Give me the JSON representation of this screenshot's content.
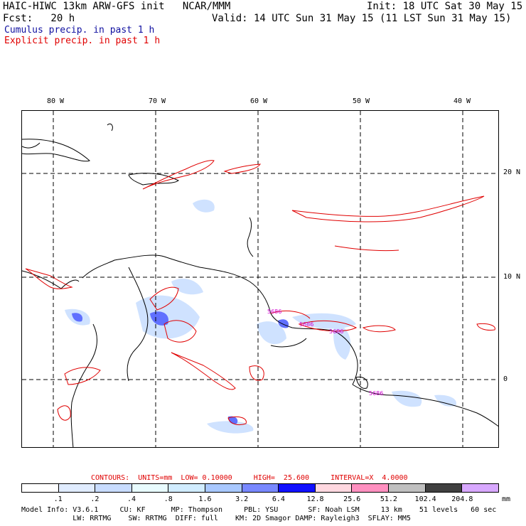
{
  "header": {
    "model_line": "HAIC-HIWC 13km ARW-GFS init   NCAR/MMM",
    "init_line": "Init: 18 UTC Sat 30 May 15",
    "fcst_line": "Fcst:   20 h",
    "valid_line": "Valid: 14 UTC Sun 31 May 15 (11 LST Sun 31 May 15)",
    "cumulus_label": "Cumulus precip. in past 1 h",
    "explicit_label": "Explicit precip. in past 1 h"
  },
  "map": {
    "lon_labels": [
      "80 W",
      "70 W",
      "60 W",
      "50 W",
      "40 W"
    ],
    "lat_labels": [
      "20 N",
      "10 N",
      "0"
    ],
    "annotations": [
      "5686",
      "5686",
      "5686",
      "5686"
    ],
    "colors": {
      "coast": "#000000",
      "grid": "#000000",
      "explicit": "#e00000",
      "cumulus_light": "#cfe2ff",
      "cumulus_mid": "#8fb0ff",
      "cumulus_dark": "#5060ff",
      "annotation": "#d000d0"
    }
  },
  "contours": {
    "line": "CONTOURS:  UNITS=mm  LOW= 0.10000     HIGH=  25.600     INTERVAL=X  4.0000"
  },
  "legend": {
    "ticks": [
      ".1",
      ".2",
      ".4",
      ".8",
      "1.6",
      "3.2",
      "6.4",
      "12.8",
      "25.6",
      "51.2",
      "102.4",
      "204.8"
    ],
    "units": "mm",
    "colors": [
      "#ffffff",
      "#e0ecff",
      "#c8dcff",
      "#e8fcff",
      "#d0ecff",
      "#a8c8ff",
      "#7888ff",
      "#1010ff",
      "#ffd8e0",
      "#ff90c0",
      "#c0c0c0",
      "#404040",
      "#d8a8ff"
    ]
  },
  "footer": {
    "line1": "Model Info: V3.6.1     CU: KF      MP: Thompson     PBL: YSU       SF: Noah LSM     13 km    51 levels   60 sec",
    "line2": "            LW: RRTMG    SW: RRTMG  DIFF: full    KM: 2D Smagor DAMP: Rayleigh3  SFLAY: MM5"
  }
}
